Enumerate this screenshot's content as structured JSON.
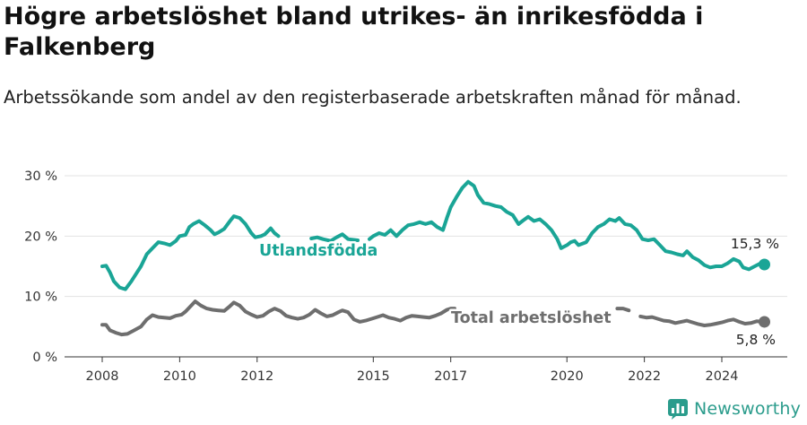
{
  "title": "Högre arbetslöshet bland utrikes- än inrikesfödda i Falkenberg",
  "subtitle": "Arbetssökande som andel av den registerbaserade arbetskraften månad för månad.",
  "brand": {
    "name": "Newsworthy"
  },
  "colors": {
    "foreign_born": "#1aa596",
    "total": "#6e6e6e",
    "grid": "#e3e3e3",
    "axis": "#333333",
    "brand": "#2b9c8c"
  },
  "chart_data": {
    "type": "line",
    "title": "Högre arbetslöshet bland utrikes- än inrikesfödda i Falkenberg",
    "subtitle": "Arbetssökande som andel av den registerbaserade arbetskraften månad för månad.",
    "xlabel": "",
    "ylabel": "",
    "ylim": [
      0,
      30
    ],
    "xlim": [
      2007.8,
      2025.6
    ],
    "yticks": [
      0,
      10,
      20,
      30
    ],
    "ytick_labels": [
      "0 %",
      "10 %",
      "20 %",
      "30 %"
    ],
    "xticks": [
      2008,
      2010,
      2012,
      2015,
      2017,
      2020,
      2022,
      2024
    ],
    "xtick_labels": [
      "2008",
      "2010",
      "2012",
      "2015",
      "2017",
      "2020",
      "2022",
      "2024"
    ],
    "grid": true,
    "legend": "none (direct labels on lines)",
    "series": [
      {
        "name": "Utlandsfödda",
        "color": "#1aa596",
        "end_label": "15,3 %",
        "points": [
          [
            2008.0,
            15.0
          ],
          [
            2008.1,
            15.1
          ],
          [
            2008.2,
            14.0
          ],
          [
            2008.3,
            12.5
          ],
          [
            2008.45,
            11.5
          ],
          [
            2008.6,
            11.2
          ],
          [
            2008.75,
            12.5
          ],
          [
            2008.9,
            14.0
          ],
          [
            2009.0,
            15.0
          ],
          [
            2009.15,
            17.0
          ],
          [
            2009.3,
            18.0
          ],
          [
            2009.45,
            19.0
          ],
          [
            2009.6,
            18.8
          ],
          [
            2009.75,
            18.5
          ],
          [
            2009.9,
            19.2
          ],
          [
            2010.0,
            20.0
          ],
          [
            2010.15,
            20.2
          ],
          [
            2010.25,
            21.5
          ],
          [
            2010.35,
            22.0
          ],
          [
            2010.5,
            22.5
          ],
          [
            2010.65,
            21.8
          ],
          [
            2010.8,
            21.0
          ],
          [
            2010.9,
            20.3
          ],
          [
            2011.0,
            20.6
          ],
          [
            2011.15,
            21.2
          ],
          [
            2011.3,
            22.5
          ],
          [
            2011.4,
            23.3
          ],
          [
            2011.55,
            23.0
          ],
          [
            2011.7,
            22.0
          ],
          [
            2011.85,
            20.5
          ],
          [
            2011.95,
            19.8
          ],
          [
            2012.1,
            20.0
          ],
          [
            2012.2,
            20.3
          ],
          [
            2012.35,
            21.3
          ],
          [
            2012.45,
            20.5
          ],
          [
            2012.55,
            20.0
          ],
          null,
          [
            2013.4,
            19.6
          ],
          [
            2013.55,
            19.8
          ],
          [
            2013.7,
            19.5
          ],
          [
            2013.9,
            19.2
          ],
          [
            2014.05,
            19.8
          ],
          [
            2014.2,
            20.3
          ],
          [
            2014.35,
            19.5
          ],
          [
            2014.6,
            19.3
          ],
          null,
          [
            2014.9,
            19.5
          ],
          [
            2015.0,
            20.0
          ],
          [
            2015.15,
            20.5
          ],
          [
            2015.3,
            20.2
          ],
          [
            2015.45,
            21.0
          ],
          [
            2015.6,
            20.0
          ],
          [
            2015.75,
            21.0
          ],
          [
            2015.9,
            21.8
          ],
          [
            2016.05,
            22.0
          ],
          [
            2016.2,
            22.3
          ],
          [
            2016.35,
            22.0
          ],
          [
            2016.5,
            22.3
          ],
          [
            2016.65,
            21.5
          ],
          [
            2016.8,
            21.0
          ],
          [
            2016.9,
            23.0
          ],
          [
            2017.0,
            24.8
          ],
          [
            2017.15,
            26.5
          ],
          [
            2017.3,
            28.0
          ],
          [
            2017.45,
            29.0
          ],
          [
            2017.6,
            28.3
          ],
          [
            2017.7,
            26.8
          ],
          [
            2017.85,
            25.5
          ],
          [
            2018.0,
            25.3
          ],
          [
            2018.15,
            25.0
          ],
          [
            2018.3,
            24.8
          ],
          [
            2018.45,
            24.0
          ],
          [
            2018.6,
            23.5
          ],
          [
            2018.75,
            22.0
          ],
          [
            2018.85,
            22.5
          ],
          [
            2019.0,
            23.2
          ],
          [
            2019.15,
            22.5
          ],
          [
            2019.3,
            22.8
          ],
          [
            2019.45,
            22.0
          ],
          [
            2019.6,
            21.0
          ],
          [
            2019.75,
            19.5
          ],
          [
            2019.85,
            18.0
          ],
          [
            2020.0,
            18.5
          ],
          [
            2020.1,
            19.0
          ],
          [
            2020.2,
            19.2
          ],
          [
            2020.3,
            18.5
          ],
          [
            2020.5,
            19.0
          ],
          [
            2020.65,
            20.5
          ],
          [
            2020.8,
            21.5
          ],
          [
            2020.95,
            22.0
          ],
          [
            2021.1,
            22.8
          ],
          [
            2021.25,
            22.5
          ],
          [
            2021.35,
            23.0
          ],
          [
            2021.5,
            22.0
          ],
          [
            2021.65,
            21.8
          ],
          [
            2021.8,
            21.0
          ],
          [
            2021.95,
            19.5
          ],
          [
            2022.1,
            19.3
          ],
          [
            2022.25,
            19.5
          ],
          [
            2022.4,
            18.5
          ],
          [
            2022.55,
            17.5
          ],
          [
            2022.7,
            17.3
          ],
          [
            2022.85,
            17.0
          ],
          [
            2023.0,
            16.8
          ],
          [
            2023.1,
            17.5
          ],
          [
            2023.25,
            16.5
          ],
          [
            2023.4,
            16.0
          ],
          [
            2023.55,
            15.2
          ],
          [
            2023.7,
            14.8
          ],
          [
            2023.85,
            15.0
          ],
          [
            2024.0,
            15.0
          ],
          [
            2024.15,
            15.5
          ],
          [
            2024.3,
            16.2
          ],
          [
            2024.45,
            15.8
          ],
          [
            2024.55,
            14.8
          ],
          [
            2024.7,
            14.5
          ],
          [
            2024.85,
            15.0
          ],
          [
            2025.0,
            15.5
          ],
          [
            2025.1,
            15.3
          ]
        ]
      },
      {
        "name": "Total arbetslöshet",
        "color": "#6e6e6e",
        "end_label": "5,8 %",
        "points": [
          [
            2008.0,
            5.3
          ],
          [
            2008.1,
            5.3
          ],
          [
            2008.2,
            4.4
          ],
          [
            2008.35,
            4.0
          ],
          [
            2008.5,
            3.7
          ],
          [
            2008.65,
            3.8
          ],
          [
            2008.8,
            4.3
          ],
          [
            2009.0,
            5.0
          ],
          [
            2009.15,
            6.2
          ],
          [
            2009.3,
            6.9
          ],
          [
            2009.45,
            6.6
          ],
          [
            2009.6,
            6.5
          ],
          [
            2009.75,
            6.4
          ],
          [
            2009.9,
            6.8
          ],
          [
            2010.05,
            7.0
          ],
          [
            2010.15,
            7.5
          ],
          [
            2010.3,
            8.5
          ],
          [
            2010.4,
            9.2
          ],
          [
            2010.55,
            8.5
          ],
          [
            2010.7,
            8.0
          ],
          [
            2010.85,
            7.8
          ],
          [
            2011.0,
            7.7
          ],
          [
            2011.15,
            7.6
          ],
          [
            2011.3,
            8.4
          ],
          [
            2011.4,
            9.0
          ],
          [
            2011.55,
            8.5
          ],
          [
            2011.7,
            7.5
          ],
          [
            2011.85,
            7.0
          ],
          [
            2012.0,
            6.6
          ],
          [
            2012.15,
            6.8
          ],
          [
            2012.3,
            7.5
          ],
          [
            2012.45,
            8.0
          ],
          [
            2012.6,
            7.6
          ],
          [
            2012.75,
            6.8
          ],
          [
            2012.9,
            6.5
          ],
          [
            2013.05,
            6.3
          ],
          [
            2013.2,
            6.5
          ],
          [
            2013.35,
            7.0
          ],
          [
            2013.5,
            7.8
          ],
          [
            2013.65,
            7.2
          ],
          [
            2013.8,
            6.7
          ],
          [
            2013.95,
            6.9
          ],
          [
            2014.1,
            7.4
          ],
          [
            2014.2,
            7.7
          ],
          [
            2014.35,
            7.4
          ],
          [
            2014.5,
            6.2
          ],
          [
            2014.65,
            5.8
          ],
          [
            2014.8,
            6.0
          ],
          [
            2014.95,
            6.3
          ],
          [
            2015.1,
            6.6
          ],
          [
            2015.25,
            6.9
          ],
          [
            2015.4,
            6.5
          ],
          [
            2015.55,
            6.3
          ],
          [
            2015.7,
            6.0
          ],
          [
            2015.85,
            6.5
          ],
          [
            2016.0,
            6.8
          ],
          [
            2016.15,
            6.7
          ],
          [
            2016.3,
            6.6
          ],
          [
            2016.45,
            6.5
          ],
          [
            2016.6,
            6.8
          ],
          [
            2016.75,
            7.2
          ],
          [
            2016.9,
            7.8
          ],
          [
            2017.0,
            8.0
          ],
          [
            2017.1,
            8.0
          ],
          null,
          [
            2021.3,
            8.0
          ],
          [
            2021.45,
            8.0
          ],
          [
            2021.6,
            7.7
          ],
          null,
          [
            2021.9,
            6.7
          ],
          [
            2022.05,
            6.5
          ],
          [
            2022.2,
            6.6
          ],
          [
            2022.35,
            6.3
          ],
          [
            2022.5,
            6.0
          ],
          [
            2022.65,
            5.9
          ],
          [
            2022.8,
            5.6
          ],
          [
            2022.95,
            5.8
          ],
          [
            2023.1,
            6.0
          ],
          [
            2023.25,
            5.7
          ],
          [
            2023.4,
            5.4
          ],
          [
            2023.55,
            5.2
          ],
          [
            2023.7,
            5.3
          ],
          [
            2023.85,
            5.5
          ],
          [
            2024.0,
            5.7
          ],
          [
            2024.15,
            6.0
          ],
          [
            2024.3,
            6.2
          ],
          [
            2024.45,
            5.8
          ],
          [
            2024.6,
            5.5
          ],
          [
            2024.75,
            5.6
          ],
          [
            2024.9,
            5.9
          ],
          [
            2025.05,
            5.8
          ],
          [
            2025.1,
            5.8
          ]
        ]
      }
    ]
  }
}
